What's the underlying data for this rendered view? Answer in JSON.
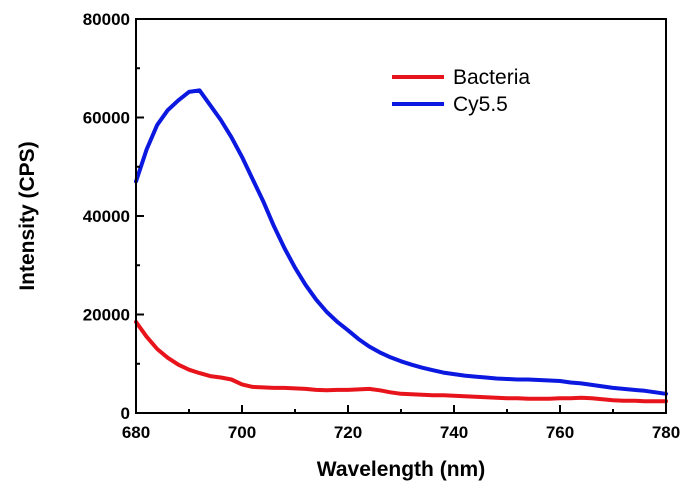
{
  "chart_data": {
    "type": "line",
    "xlabel": "Wavelength (nm)",
    "ylabel": "Intensity (CPS)",
    "xlim": [
      680,
      780
    ],
    "ylim": [
      0,
      80000
    ],
    "x_ticks": [
      "680",
      "700",
      "720",
      "740",
      "760",
      "780"
    ],
    "y_ticks": [
      "0",
      "20000",
      "40000",
      "60000",
      "80000"
    ],
    "legend_position": "top-right",
    "grid": false,
    "series": [
      {
        "name": "Bacteria",
        "color": "#e8141b",
        "x": [
          680,
          682,
          684,
          686,
          688,
          690,
          692,
          694,
          696,
          698,
          700,
          702,
          704,
          706,
          708,
          710,
          712,
          714,
          716,
          718,
          720,
          722,
          724,
          726,
          728,
          730,
          732,
          734,
          736,
          738,
          740,
          742,
          744,
          746,
          748,
          750,
          752,
          754,
          756,
          758,
          760,
          762,
          764,
          766,
          768,
          770,
          772,
          774,
          776,
          778,
          780
        ],
        "y": [
          18500,
          15500,
          13000,
          11200,
          9800,
          8800,
          8100,
          7500,
          7200,
          6800,
          5800,
          5300,
          5200,
          5100,
          5100,
          5000,
          4900,
          4700,
          4600,
          4700,
          4700,
          4800,
          4900,
          4600,
          4200,
          3900,
          3800,
          3700,
          3600,
          3600,
          3500,
          3400,
          3300,
          3200,
          3100,
          3000,
          3000,
          2900,
          2900,
          2900,
          3000,
          3000,
          3100,
          3000,
          2800,
          2600,
          2500,
          2500,
          2400,
          2400,
          2400
        ]
      },
      {
        "name": "Cy5.5",
        "color": "#0b18e0",
        "x": [
          680,
          682,
          684,
          686,
          688,
          690,
          692,
          694,
          696,
          698,
          700,
          702,
          704,
          706,
          708,
          710,
          712,
          714,
          716,
          718,
          720,
          722,
          724,
          726,
          728,
          730,
          732,
          734,
          736,
          738,
          740,
          742,
          744,
          746,
          748,
          750,
          752,
          754,
          756,
          758,
          760,
          762,
          764,
          766,
          768,
          770,
          772,
          774,
          776,
          778,
          780
        ],
        "y": [
          47000,
          53500,
          58500,
          61500,
          63500,
          65200,
          65500,
          62500,
          59500,
          56000,
          52000,
          47500,
          43000,
          38000,
          33500,
          29500,
          26000,
          23000,
          20500,
          18500,
          16800,
          15000,
          13500,
          12300,
          11300,
          10500,
          9800,
          9200,
          8700,
          8200,
          7900,
          7600,
          7400,
          7200,
          7000,
          6900,
          6800,
          6800,
          6700,
          6600,
          6500,
          6200,
          6000,
          5700,
          5400,
          5100,
          4900,
          4700,
          4500,
          4200,
          3900
        ]
      }
    ]
  }
}
